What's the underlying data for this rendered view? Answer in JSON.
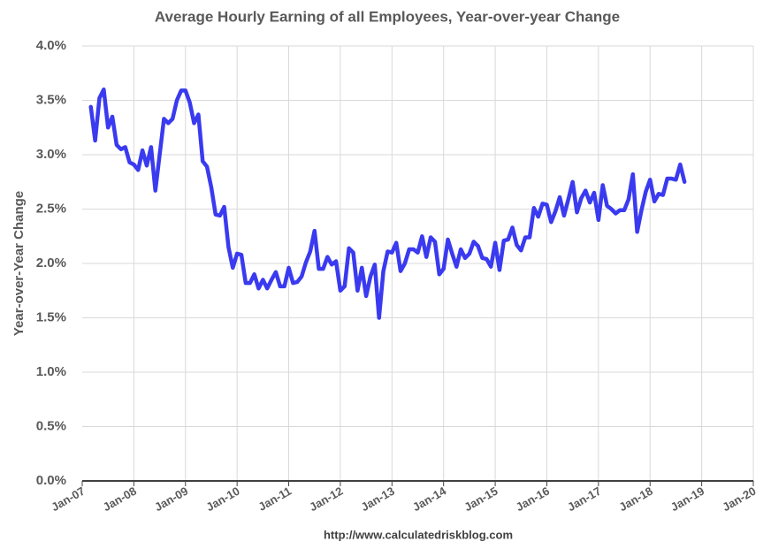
{
  "chart_data": {
    "type": "line",
    "title": "Average Hourly Earning of all Employees, Year-over-year Change",
    "y_label": "Year-over-Year Change",
    "source": "http://www.calculatedriskblog.com",
    "color": "#3a3af0",
    "grid": true,
    "xlim": [
      "2007-01",
      "2020-01"
    ],
    "xticks": [
      {
        "value": "2007-01",
        "label": "Jan-07"
      },
      {
        "value": "2008-01",
        "label": "Jan-08"
      },
      {
        "value": "2009-01",
        "label": "Jan-09"
      },
      {
        "value": "2010-01",
        "label": "Jan-10"
      },
      {
        "value": "2011-01",
        "label": "Jan-11"
      },
      {
        "value": "2012-01",
        "label": "Jan-12"
      },
      {
        "value": "2013-01",
        "label": "Jan-13"
      },
      {
        "value": "2014-01",
        "label": "Jan-14"
      },
      {
        "value": "2015-01",
        "label": "Jan-15"
      },
      {
        "value": "2016-01",
        "label": "Jan-16"
      },
      {
        "value": "2017-01",
        "label": "Jan-17"
      },
      {
        "value": "2018-01",
        "label": "Jan-18"
      },
      {
        "value": "2019-01",
        "label": "Jan-19"
      },
      {
        "value": "2020-01",
        "label": "Jan-20"
      }
    ],
    "ylim": [
      0,
      4
    ],
    "yticks": [
      {
        "value": 0,
        "label": "0.0%"
      },
      {
        "value": 0.5,
        "label": "0.5%"
      },
      {
        "value": 1,
        "label": "1.0%"
      },
      {
        "value": 1.5,
        "label": "1.5%"
      },
      {
        "value": 2,
        "label": "2.0%"
      },
      {
        "value": 2.5,
        "label": "2.5%"
      },
      {
        "value": 3,
        "label": "3.0%"
      },
      {
        "value": 3.5,
        "label": "3.5%"
      },
      {
        "value": 4,
        "label": "4.0%"
      }
    ],
    "x": [
      "2007-03",
      "2007-04",
      "2007-05",
      "2007-06",
      "2007-07",
      "2007-08",
      "2007-09",
      "2007-10",
      "2007-11",
      "2007-12",
      "2008-01",
      "2008-02",
      "2008-03",
      "2008-04",
      "2008-05",
      "2008-06",
      "2008-07",
      "2008-08",
      "2008-09",
      "2008-10",
      "2008-11",
      "2008-12",
      "2009-01",
      "2009-02",
      "2009-03",
      "2009-04",
      "2009-05",
      "2009-06",
      "2009-07",
      "2009-08",
      "2009-09",
      "2009-10",
      "2009-11",
      "2009-12",
      "2010-01",
      "2010-02",
      "2010-03",
      "2010-04",
      "2010-05",
      "2010-06",
      "2010-07",
      "2010-08",
      "2010-09",
      "2010-10",
      "2010-11",
      "2010-12",
      "2011-01",
      "2011-02",
      "2011-03",
      "2011-04",
      "2011-05",
      "2011-06",
      "2011-07",
      "2011-08",
      "2011-09",
      "2011-10",
      "2011-11",
      "2011-12",
      "2012-01",
      "2012-02",
      "2012-03",
      "2012-04",
      "2012-05",
      "2012-06",
      "2012-07",
      "2012-08",
      "2012-09",
      "2012-10",
      "2012-11",
      "2012-12",
      "2013-01",
      "2013-02",
      "2013-03",
      "2013-04",
      "2013-05",
      "2013-06",
      "2013-07",
      "2013-08",
      "2013-09",
      "2013-10",
      "2013-11",
      "2013-12",
      "2014-01",
      "2014-02",
      "2014-03",
      "2014-04",
      "2014-05",
      "2014-06",
      "2014-07",
      "2014-08",
      "2014-09",
      "2014-10",
      "2014-11",
      "2014-12",
      "2015-01",
      "2015-02",
      "2015-03",
      "2015-04",
      "2015-05",
      "2015-06",
      "2015-07",
      "2015-08",
      "2015-09",
      "2015-10",
      "2015-11",
      "2015-12",
      "2016-01",
      "2016-02",
      "2016-03",
      "2016-04",
      "2016-05",
      "2016-06",
      "2016-07",
      "2016-08",
      "2016-09",
      "2016-10",
      "2016-11",
      "2016-12",
      "2017-01",
      "2017-02",
      "2017-03",
      "2017-04",
      "2017-05",
      "2017-06",
      "2017-07",
      "2017-08",
      "2017-09",
      "2017-10",
      "2017-11",
      "2017-12",
      "2018-01",
      "2018-02",
      "2018-03",
      "2018-04",
      "2018-05",
      "2018-06",
      "2018-07",
      "2018-08",
      "2018-09"
    ],
    "values": [
      3.44,
      3.13,
      3.52,
      3.6,
      3.25,
      3.35,
      3.09,
      3.05,
      3.07,
      2.93,
      2.91,
      2.86,
      3.04,
      2.9,
      3.07,
      2.67,
      3.0,
      3.33,
      3.29,
      3.33,
      3.5,
      3.59,
      3.59,
      3.48,
      3.29,
      3.37,
      2.94,
      2.89,
      2.7,
      2.45,
      2.44,
      2.52,
      2.15,
      1.96,
      2.09,
      2.08,
      1.82,
      1.82,
      1.9,
      1.77,
      1.85,
      1.77,
      1.85,
      1.92,
      1.79,
      1.79,
      1.96,
      1.82,
      1.83,
      1.88,
      2.01,
      2.11,
      2.3,
      1.95,
      1.95,
      2.06,
      1.99,
      2.02,
      1.75,
      1.79,
      2.14,
      2.1,
      1.75,
      1.96,
      1.7,
      1.88,
      1.99,
      1.5,
      1.93,
      2.11,
      2.1,
      2.19,
      1.93,
      2.0,
      2.13,
      2.13,
      2.1,
      2.25,
      2.06,
      2.24,
      2.2,
      1.9,
      1.95,
      2.22,
      2.09,
      1.97,
      2.13,
      2.05,
      2.09,
      2.2,
      2.16,
      2.05,
      2.04,
      1.97,
      2.19,
      1.94,
      2.21,
      2.22,
      2.33,
      2.17,
      2.12,
      2.24,
      2.24,
      2.51,
      2.43,
      2.55,
      2.54,
      2.38,
      2.48,
      2.61,
      2.44,
      2.59,
      2.75,
      2.47,
      2.6,
      2.67,
      2.56,
      2.65,
      2.4,
      2.72,
      2.53,
      2.5,
      2.46,
      2.49,
      2.49,
      2.59,
      2.82,
      2.29,
      2.49,
      2.66,
      2.77,
      2.57,
      2.64,
      2.63,
      2.78,
      2.78,
      2.77,
      2.91,
      2.75
    ]
  }
}
